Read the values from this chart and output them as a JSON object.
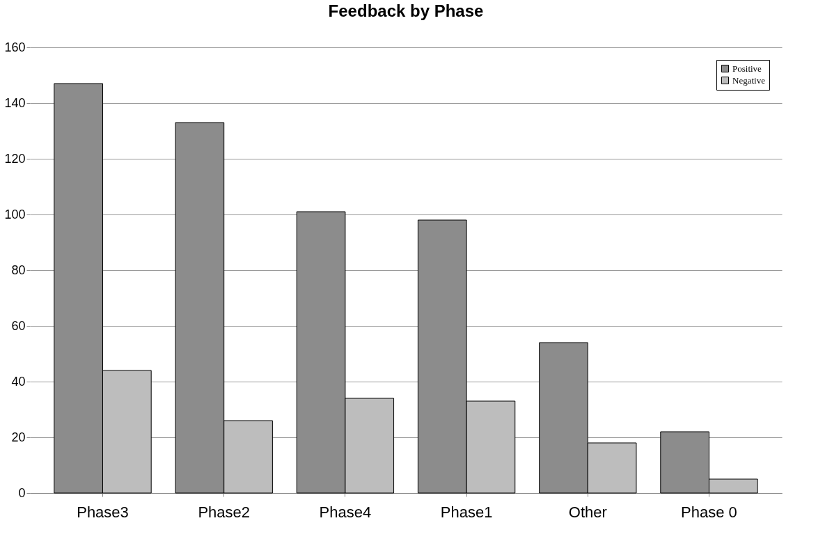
{
  "chart_data": {
    "type": "bar",
    "title": "Feedback by Phase",
    "categories": [
      "Phase3",
      "Phase2",
      "Phase4",
      "Phase1",
      "Other",
      "Phase 0"
    ],
    "series": [
      {
        "name": "Positive",
        "color": "#8c8c8c",
        "values": [
          147,
          133,
          101,
          98,
          54,
          22
        ]
      },
      {
        "name": "Negative",
        "color": "#bdbdbd",
        "values": [
          44,
          26,
          34,
          33,
          18,
          5
        ]
      }
    ],
    "ylim": [
      0,
      160
    ],
    "yticks": [
      0,
      20,
      40,
      60,
      80,
      100,
      120,
      140,
      160
    ],
    "grid": "y",
    "legend": "top right"
  }
}
